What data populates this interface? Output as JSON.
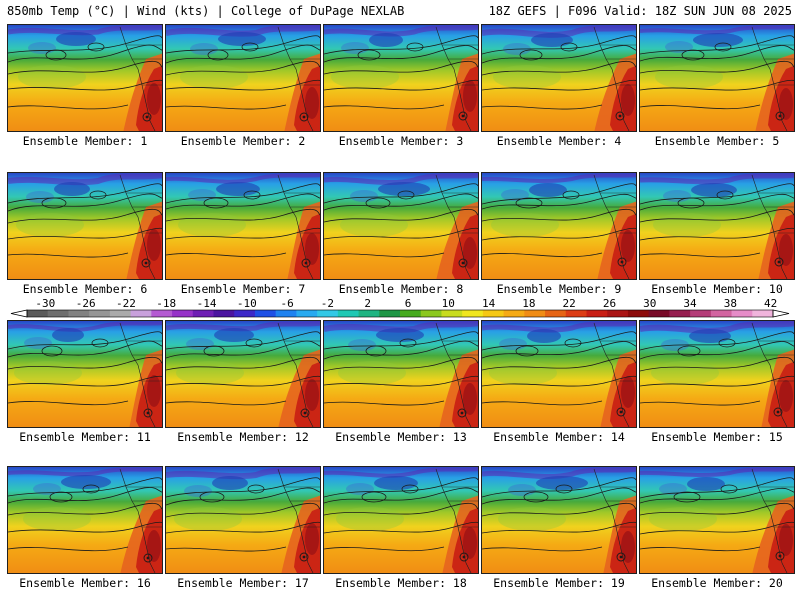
{
  "header": {
    "left": "850mb Temp (°C) | Wind (kts) | College of DuPage NEXLAB",
    "right": "18Z GEFS | F096 Valid: 18Z SUN JUN 08 2025"
  },
  "members": [
    {
      "label": "Ensemble Member: 1"
    },
    {
      "label": "Ensemble Member: 2"
    },
    {
      "label": "Ensemble Member: 3"
    },
    {
      "label": "Ensemble Member: 4"
    },
    {
      "label": "Ensemble Member: 5"
    },
    {
      "label": "Ensemble Member: 6"
    },
    {
      "label": "Ensemble Member: 7"
    },
    {
      "label": "Ensemble Member: 8"
    },
    {
      "label": "Ensemble Member: 9"
    },
    {
      "label": "Ensemble Member: 10"
    },
    {
      "label": "Ensemble Member: 11"
    },
    {
      "label": "Ensemble Member: 12"
    },
    {
      "label": "Ensemble Member: 13"
    },
    {
      "label": "Ensemble Member: 14"
    },
    {
      "label": "Ensemble Member: 15"
    },
    {
      "label": "Ensemble Member: 16"
    },
    {
      "label": "Ensemble Member: 17"
    },
    {
      "label": "Ensemble Member: 18"
    },
    {
      "label": "Ensemble Member: 19"
    },
    {
      "label": "Ensemble Member: 20"
    }
  ],
  "colorbar": {
    "tick_labels": [
      "-30",
      "-26",
      "-22",
      "-18",
      "-14",
      "-10",
      "-6",
      "-2",
      "2",
      "6",
      "10",
      "14",
      "18",
      "22",
      "26",
      "30",
      "34",
      "38",
      "42"
    ],
    "colors": [
      "#5a5a5a",
      "#6e6e6e",
      "#828282",
      "#969696",
      "#aaaaaa",
      "#c8a0dc",
      "#b45ad2",
      "#9632c8",
      "#6e1eb4",
      "#4b14a0",
      "#3c28c8",
      "#1e50e6",
      "#1e82f0",
      "#28aaf0",
      "#32c8e6",
      "#1ec8b4",
      "#1eb482",
      "#1e9646",
      "#46aa1e",
      "#8cc81e",
      "#c8dc1e",
      "#f0e61e",
      "#f5c814",
      "#f5aa14",
      "#f08c14",
      "#e66414",
      "#dc3c14",
      "#c81e14",
      "#aa1414",
      "#8c0a0a",
      "#780a28",
      "#961e50",
      "#b43c78",
      "#d264a0",
      "#e68cc8",
      "#f0b4dc"
    ]
  }
}
